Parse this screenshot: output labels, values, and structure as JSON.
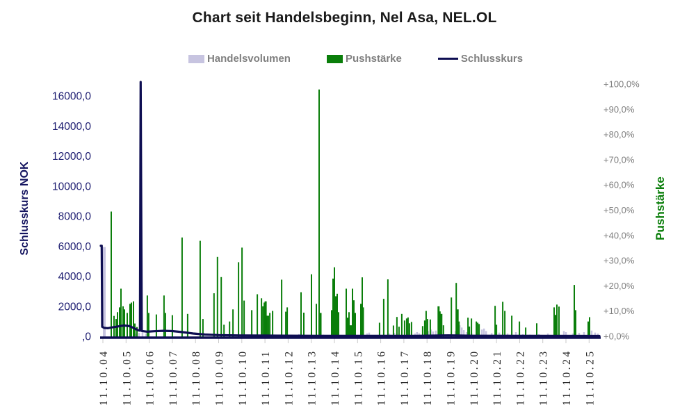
{
  "title": "Chart seit Handelsbeginn, Nel Asa, NEL.OL",
  "legend": {
    "items": [
      {
        "label": "Handelsvolumen",
        "swatch": "box",
        "color": "#c7c4e0"
      },
      {
        "label": "Pushstärke",
        "swatch": "box",
        "color": "#0a7e0a"
      },
      {
        "label": "Schlusskurs",
        "swatch": "line",
        "color": "#0e0e52"
      }
    ]
  },
  "colors": {
    "volume": "#c7c4e0",
    "push": "#0a7e0a",
    "price": "#0e0e52",
    "tick": "#c9c9c9",
    "left_axis_text": "#1c1c70",
    "right_axis_text": "#7f7f7f"
  },
  "chart_data": {
    "type": "bar",
    "subtype": "combo-bar-line-dual-axis",
    "title": "Chart seit Handelsbeginn, Nel Asa, NEL.OL",
    "x_tick_labels": [
      "11.10.04",
      "11.10.05",
      "11.10.06",
      "11.10.07",
      "11.10.08",
      "11.10.09",
      "11.10.10",
      "11.10.11",
      "11.10.12",
      "11.10.13",
      "11.10.14",
      "11.10.15",
      "11.10.16",
      "11.10.17",
      "11.10.18",
      "11.10.19",
      "11.10.20",
      "11.10.21",
      "11.10.22",
      "11.10.23",
      "11.10.24",
      "11.10.25"
    ],
    "x_unit": "t_years_after_first_label",
    "left_axis": {
      "title": "Schlusskurs NOK",
      "tick_labels": [
        "16000,0",
        "14000,0",
        "12000,0",
        "10000,0",
        "8000,0",
        "6000,0",
        "4000,0",
        "2000,0",
        ",0"
      ],
      "tick_values": [
        16000,
        14000,
        12000,
        10000,
        8000,
        6000,
        4000,
        2000,
        0
      ],
      "range": [
        0,
        17300
      ]
    },
    "right_axis": {
      "title": "Pushstärke",
      "tick_labels": [
        "+100,0%",
        "+90,0%",
        "+80,0%",
        "+70,0%",
        "+60,0%",
        "+50,0%",
        "+40,0%",
        "+30,0%",
        "+20,0%",
        "+10,0%",
        "+0,0%"
      ],
      "tick_values": [
        100,
        90,
        80,
        70,
        60,
        50,
        40,
        30,
        20,
        10,
        0
      ],
      "range": [
        0,
        100.5
      ]
    },
    "series": [
      {
        "name": "Handelsvolumen",
        "type": "bar",
        "axis": "relative_pct_of_right_axis",
        "color": "#c7c4e0",
        "points": [
          [
            0.06,
            35.5,
            4
          ],
          [
            1.44,
            1.2
          ],
          [
            1.56,
            1.5
          ],
          [
            1.71,
            1.8
          ],
          [
            1.86,
            1.2
          ],
          [
            8.47,
            1.0
          ],
          [
            9.52,
            0.8
          ],
          [
            11.41,
            1.3
          ],
          [
            11.5,
            1.6
          ],
          [
            12.37,
            1.2
          ],
          [
            12.58,
            1.5
          ],
          [
            12.7,
            1.2
          ],
          [
            13.48,
            1.2
          ],
          [
            13.57,
            1.8
          ],
          [
            13.66,
            1.3
          ],
          [
            14.05,
            2.2
          ],
          [
            14.17,
            2.8
          ],
          [
            14.26,
            2.0
          ],
          [
            14.38,
            2.4
          ],
          [
            15.23,
            2.2
          ],
          [
            15.32,
            3.0
          ],
          [
            15.41,
            4.5
          ],
          [
            15.5,
            3.6
          ],
          [
            15.59,
            2.6
          ],
          [
            15.71,
            1.8
          ],
          [
            15.92,
            1.4
          ],
          [
            16.37,
            2.8
          ],
          [
            16.46,
            3.2
          ],
          [
            16.55,
            2.2
          ],
          [
            16.79,
            1.4
          ],
          [
            17.12,
            1.6
          ],
          [
            17.48,
            1.2
          ],
          [
            17.84,
            1.8
          ],
          [
            18.14,
            1.0
          ],
          [
            18.44,
            0.8
          ],
          [
            18.83,
            1.0
          ],
          [
            19.22,
            1.2
          ],
          [
            19.58,
            1.0
          ],
          [
            19.91,
            2.2
          ],
          [
            20.0,
            1.8
          ],
          [
            20.3,
            1.2
          ],
          [
            20.57,
            1.5
          ],
          [
            20.78,
            1.8
          ],
          [
            21.11,
            2.4
          ],
          [
            21.26,
            1.6
          ],
          [
            21.38,
            1.2
          ]
        ]
      },
      {
        "name": "Pushstärke",
        "type": "bar",
        "axis": "right_pct",
        "color": "#0a7e0a",
        "points": [
          [
            0.36,
            49.6
          ],
          [
            0.48,
            8.2
          ],
          [
            0.57,
            7.0
          ],
          [
            0.63,
            9.7
          ],
          [
            0.72,
            11.6
          ],
          [
            0.78,
            19.0
          ],
          [
            0.87,
            12.0
          ],
          [
            0.93,
            10.8
          ],
          [
            1.05,
            9.4
          ],
          [
            1.17,
            13.0
          ],
          [
            1.23,
            13.5
          ],
          [
            1.32,
            14.0
          ],
          [
            1.38,
            5.2
          ],
          [
            1.47,
            3.8
          ],
          [
            1.92,
            16.3
          ],
          [
            1.98,
            9.4
          ],
          [
            2.31,
            8.8
          ],
          [
            2.64,
            16.3
          ],
          [
            2.7,
            9.4
          ],
          [
            3.0,
            8.5
          ],
          [
            3.42,
            39.3
          ],
          [
            3.66,
            9.0
          ],
          [
            4.2,
            38.0
          ],
          [
            4.32,
            7.0
          ],
          [
            4.8,
            17.2
          ],
          [
            4.95,
            31.6
          ],
          [
            5.11,
            23.6
          ],
          [
            5.23,
            4.7
          ],
          [
            5.47,
            6.0
          ],
          [
            5.62,
            10.8
          ],
          [
            5.86,
            29.5
          ],
          [
            6.01,
            35.3
          ],
          [
            6.1,
            14.3
          ],
          [
            6.43,
            10.5
          ],
          [
            6.67,
            16.8
          ],
          [
            6.85,
            15.2
          ],
          [
            6.91,
            12.0
          ],
          [
            6.97,
            13.5
          ],
          [
            7.03,
            14.0,
            3
          ],
          [
            7.09,
            8.3
          ],
          [
            7.15,
            8.3
          ],
          [
            7.21,
            9.4
          ],
          [
            7.33,
            10.2
          ],
          [
            7.72,
            22.6
          ],
          [
            7.9,
            9.9
          ],
          [
            7.96,
            11.6
          ],
          [
            8.56,
            17.6
          ],
          [
            8.68,
            9.5
          ],
          [
            9.01,
            24.7
          ],
          [
            9.22,
            13.0
          ],
          [
            9.34,
            98.0
          ],
          [
            9.4,
            9.4,
            3
          ],
          [
            9.88,
            10.5
          ],
          [
            9.94,
            23.0
          ],
          [
            10.0,
            27.5
          ],
          [
            10.06,
            16.0,
            3
          ],
          [
            10.12,
            17.0
          ],
          [
            10.18,
            9.7
          ],
          [
            10.51,
            19.0
          ],
          [
            10.57,
            7.5
          ],
          [
            10.63,
            9.7
          ],
          [
            10.69,
            4.5,
            4
          ],
          [
            10.78,
            19.0
          ],
          [
            10.84,
            14.4
          ],
          [
            10.9,
            9.4
          ],
          [
            11.14,
            13.0
          ],
          [
            11.2,
            23.5
          ],
          [
            11.23,
            11.6,
            3
          ],
          [
            11.95,
            5.5
          ],
          [
            12.13,
            15.0
          ],
          [
            12.31,
            22.7
          ],
          [
            12.55,
            4.4
          ],
          [
            12.7,
            7.8
          ],
          [
            12.79,
            3.9
          ],
          [
            12.91,
            9.0
          ],
          [
            13.03,
            6.4
          ],
          [
            13.12,
            7.2
          ],
          [
            13.18,
            7.6
          ],
          [
            13.24,
            5.3
          ],
          [
            13.33,
            5.8
          ],
          [
            13.81,
            4.2
          ],
          [
            13.9,
            6.4
          ],
          [
            13.96,
            10.2
          ],
          [
            14.02,
            7.0
          ],
          [
            14.14,
            6.8
          ],
          [
            14.5,
            12.0,
            3
          ],
          [
            14.56,
            10.0
          ],
          [
            14.62,
            9.0,
            3
          ],
          [
            14.71,
            4.5
          ],
          [
            15.05,
            15.5
          ],
          [
            15.26,
            21.3
          ],
          [
            15.32,
            10.8,
            3
          ],
          [
            15.38,
            6.0
          ],
          [
            15.77,
            7.5
          ],
          [
            15.83,
            4.0
          ],
          [
            15.92,
            7.2
          ],
          [
            16.13,
            6.0
          ],
          [
            16.19,
            5.5
          ],
          [
            16.25,
            5.0
          ],
          [
            16.94,
            12.2
          ],
          [
            17.0,
            4.7
          ],
          [
            17.27,
            13.8
          ],
          [
            17.36,
            10.2
          ],
          [
            17.66,
            8.3
          ],
          [
            17.99,
            6.0
          ],
          [
            18.26,
            3.6
          ],
          [
            18.74,
            5.3
          ],
          [
            19.49,
            11.6
          ],
          [
            19.55,
            8.6
          ],
          [
            19.61,
            12.7
          ],
          [
            19.7,
            11.9
          ],
          [
            20.36,
            20.5
          ],
          [
            20.42,
            10.5
          ],
          [
            20.96,
            6.0
          ],
          [
            21.02,
            7.7
          ]
        ]
      },
      {
        "name": "Schlusskurs",
        "type": "line",
        "axis": "left_nok",
        "color": "#0e0e52",
        "points": [
          [
            -0.09,
            6050
          ],
          [
            -0.05,
            6050
          ],
          [
            -0.03,
            650
          ],
          [
            0.06,
            580
          ],
          [
            0.21,
            560
          ],
          [
            0.42,
            620
          ],
          [
            0.66,
            680
          ],
          [
            0.9,
            740
          ],
          [
            1.14,
            700
          ],
          [
            1.35,
            560
          ],
          [
            1.53,
            420
          ],
          [
            1.6,
            400
          ],
          [
            1.63,
            16950
          ],
          [
            1.68,
            380
          ],
          [
            1.92,
            330
          ],
          [
            2.22,
            360
          ],
          [
            2.61,
            390
          ],
          [
            3.0,
            370
          ],
          [
            3.42,
            300
          ],
          [
            3.9,
            210
          ],
          [
            4.41,
            140
          ],
          [
            5.01,
            100
          ],
          [
            5.92,
            80
          ],
          [
            7.57,
            65
          ],
          [
            9.37,
            55
          ],
          [
            11.47,
            50
          ],
          [
            13.57,
            55
          ],
          [
            14.92,
            85
          ],
          [
            15.98,
            60
          ],
          [
            18.08,
            50
          ],
          [
            21.44,
            48
          ]
        ]
      }
    ]
  }
}
